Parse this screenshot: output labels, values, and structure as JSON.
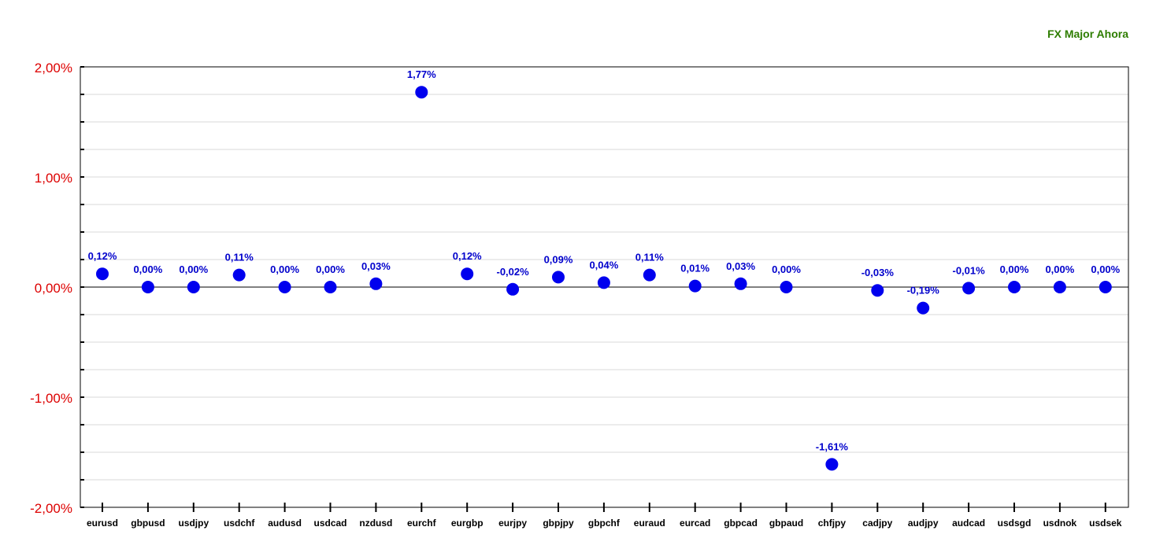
{
  "chart_data": {
    "type": "scatter",
    "title": "FX Major Ahora",
    "xlabel": "",
    "ylabel": "",
    "categories": [
      "eurusd",
      "gbpusd",
      "usdjpy",
      "usdchf",
      "audusd",
      "usdcad",
      "nzdusd",
      "eurchf",
      "eurgbp",
      "eurjpy",
      "gbpjpy",
      "gbpchf",
      "euraud",
      "eurcad",
      "gbpcad",
      "gbpaud",
      "chfjpy",
      "cadjpy",
      "audjpy",
      "audcad",
      "usdsgd",
      "usdnok",
      "usdsek"
    ],
    "values": [
      0.12,
      0.0,
      0.0,
      0.11,
      0.0,
      0.0,
      0.03,
      1.77,
      0.12,
      -0.02,
      0.09,
      0.04,
      0.11,
      0.01,
      0.03,
      0.0,
      -1.61,
      -0.03,
      -0.19,
      -0.01,
      0.0,
      0.0,
      0.0
    ],
    "data_labels": [
      "0,12%",
      "0,00%",
      "0,00%",
      "0,11%",
      "0,00%",
      "0,00%",
      "0,03%",
      "1,77%",
      "0,12%",
      "-0,02%",
      "0,09%",
      "0,04%",
      "0,11%",
      "0,01%",
      "0,03%",
      "0,00%",
      "-1,61%",
      "-0,03%",
      "-0,19%",
      "-0,01%",
      "0,00%",
      "0,00%",
      "0,00%"
    ],
    "ylim": [
      -2,
      2
    ],
    "y_ticks": [
      2,
      1,
      0,
      -1,
      -2
    ],
    "y_tick_labels": [
      "2,00%",
      "1,00%",
      "0,00%",
      "-1,00%",
      "-2,00%"
    ],
    "minor_ticks_per_major": 3,
    "grid": true,
    "colors": {
      "marker": "#0000ee",
      "data_label": "#0000cc",
      "y_tick_label": "#dd0000",
      "title": "#2e7d00",
      "grid": "#d8d8d8",
      "axis": "#000000",
      "zero_line": "#000000"
    }
  }
}
